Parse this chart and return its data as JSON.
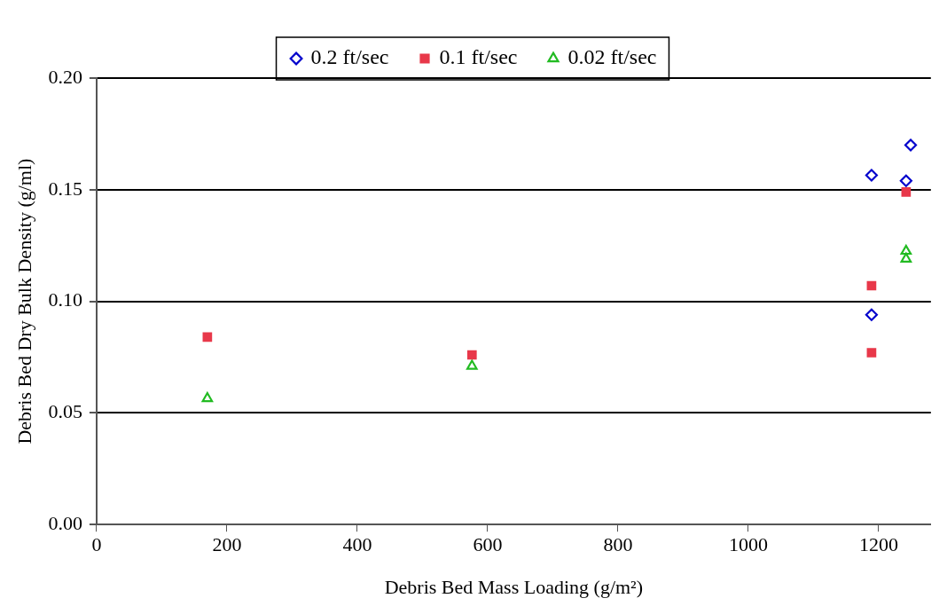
{
  "chart_data": {
    "type": "scatter",
    "xlabel": "Debris Bed Mass Loading (g/m²)",
    "ylabel": "Debris Bed Dry Bulk Density (g/ml)",
    "xlim": [
      0,
      1280
    ],
    "xticks": [
      0,
      200,
      400,
      600,
      800,
      1000,
      1200
    ],
    "ylim": [
      0,
      0.2
    ],
    "yticks": [
      {
        "value": 0,
        "label": "0.00"
      },
      0.05,
      {
        "value": 0.1,
        "label": "0.10"
      },
      0.15,
      {
        "value": 0.2,
        "label": "0.20"
      }
    ],
    "grid": "y",
    "legend": "top",
    "series": [
      {
        "name": "0.2 ft/sec",
        "color": "#0000cc",
        "marker": "diamond",
        "x": [
          1189,
          1249,
          1242,
          1189
        ],
        "values": [
          0.1565,
          0.17,
          0.154,
          0.094
        ]
      },
      {
        "name": "0.1 ft/sec",
        "color": "#e8384a",
        "marker": "square",
        "x": [
          170,
          576,
          1242,
          1189,
          1189
        ],
        "values": [
          0.084,
          0.076,
          0.149,
          0.107,
          0.077
        ]
      },
      {
        "name": "0.02 ft/sec",
        "color": "#22bb22",
        "marker": "triangle",
        "x": [
          170,
          576,
          1242,
          1242
        ],
        "values": [
          0.0565,
          0.071,
          0.1225,
          0.119
        ]
      }
    ]
  }
}
